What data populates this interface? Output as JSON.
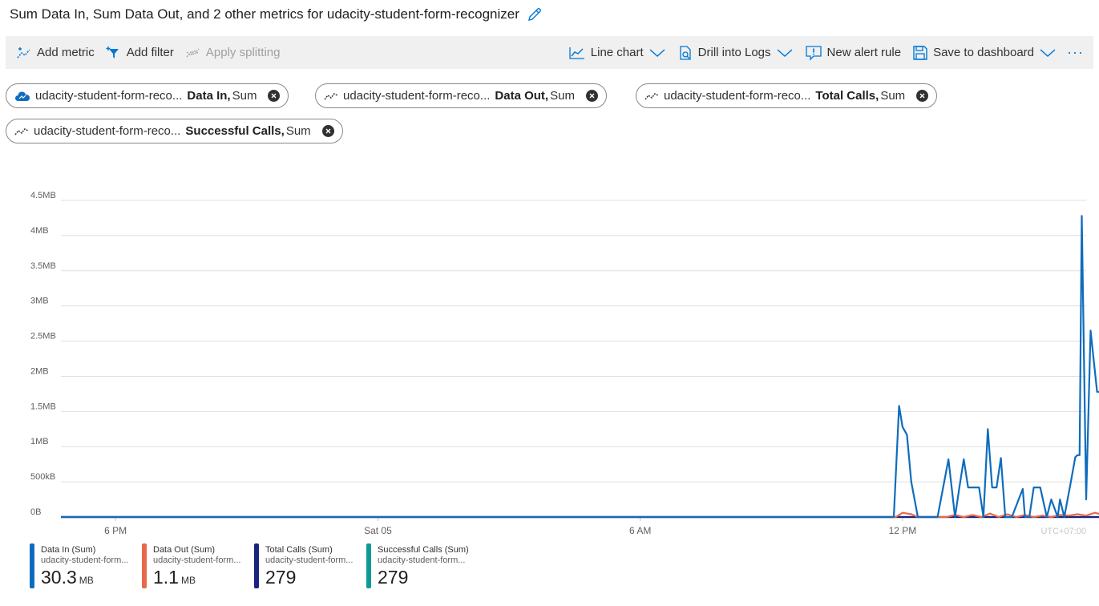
{
  "header": {
    "title": "Sum Data In, Sum Data Out, and 2 other metrics for udacity-student-form-recognizer"
  },
  "toolbar": {
    "add_metric": "Add metric",
    "add_filter": "Add filter",
    "apply_splitting": "Apply splitting",
    "line_chart": "Line chart",
    "drill_logs": "Drill into Logs",
    "new_alert": "New alert rule",
    "save_dashboard": "Save to dashboard",
    "more": "···"
  },
  "pills": [
    {
      "resource": "udacity-student-form-reco...",
      "metric": "Data In,",
      "agg": "Sum"
    },
    {
      "resource": "udacity-student-form-reco...",
      "metric": "Data Out,",
      "agg": "Sum"
    },
    {
      "resource": "udacity-student-form-reco...",
      "metric": "Total Calls,",
      "agg": "Sum"
    },
    {
      "resource": "udacity-student-form-reco...",
      "metric": "Successful Calls,",
      "agg": "Sum"
    }
  ],
  "colors": {
    "data_in": "#0f6cbd",
    "data_out": "#e8684a",
    "total_calls": "#1a237e",
    "successful_calls": "#0e9999",
    "accent": "#0078d4"
  },
  "chart_data": {
    "type": "line",
    "y_ticks": [
      "4.5MB",
      "4MB",
      "3.5MB",
      "3MB",
      "2.5MB",
      "2MB",
      "1.5MB",
      "1MB",
      "500kB",
      "0B"
    ],
    "x_ticks": [
      "6 PM",
      "Sat 05",
      "6 AM",
      "12 PM"
    ],
    "timezone_label": "UTC+07:00",
    "ylim": [
      0,
      4.5
    ],
    "y_unit": "MB",
    "x_unit": "hours",
    "xlim": [
      -1.25,
      22.2
    ],
    "x_tick_values": [
      0,
      6,
      12,
      18
    ],
    "grid": true,
    "series": [
      {
        "name": "Data In (Sum)",
        "color": "#0f6cbd",
        "x": [
          -1.25,
          17.8,
          17.92,
          18.0,
          18.1,
          18.2,
          18.35,
          18.8,
          19.05,
          19.2,
          19.3,
          19.4,
          19.5,
          19.75,
          19.85,
          19.95,
          20.05,
          20.15,
          20.25,
          20.35,
          20.5,
          20.75,
          20.8,
          20.9,
          21.0,
          21.15,
          21.3,
          21.4,
          21.55,
          21.6,
          21.7,
          21.85,
          21.95,
          22.0,
          22.05,
          22.1,
          22.2,
          22.3,
          22.45
        ],
        "y": [
          0,
          0,
          1.58,
          1.28,
          1.17,
          0.5,
          0,
          0,
          0.82,
          0,
          0.42,
          0.82,
          0.42,
          0.42,
          0,
          1.25,
          0.42,
          0.42,
          0.84,
          0,
          0,
          0.4,
          0,
          0,
          0.42,
          0.42,
          0,
          0.25,
          0,
          0.25,
          0,
          0.5,
          0.85,
          0.88,
          0.88,
          4.28,
          0.25,
          2.65,
          1.78
        ],
        "x_tail": [
          22.6,
          22.75,
          22.9
        ],
        "y_tail": [
          1.78,
          0.88,
          0
        ]
      },
      {
        "name": "Data Out (Sum)",
        "color": "#e8684a",
        "x": [
          -1.25,
          17.85,
          18.0,
          18.2,
          18.35,
          19.0,
          19.2,
          19.4,
          19.6,
          19.8,
          20.0,
          20.2,
          20.4,
          20.6,
          20.8,
          21.0,
          21.2,
          21.4,
          21.6,
          21.8,
          22.0,
          22.2,
          22.4,
          22.6,
          22.9
        ],
        "y": [
          0,
          0,
          0.06,
          0.04,
          0,
          0,
          0.03,
          0,
          0.03,
          0,
          0.05,
          0,
          0.04,
          0,
          0.03,
          0,
          0.02,
          0,
          0.03,
          0.02,
          0.04,
          0.02,
          0.06,
          0.03,
          0
        ]
      },
      {
        "name": "Total Calls (Sum)",
        "color": "#1a237e",
        "x": [
          -1.25,
          22.9
        ],
        "y": [
          0,
          0
        ]
      },
      {
        "name": "Successful Calls (Sum)",
        "color": "#0e9999",
        "x": [
          -1.25,
          22.9
        ],
        "y": [
          0,
          0
        ]
      }
    ]
  },
  "legend": [
    {
      "name": "Data In (Sum)",
      "resource": "udacity-student-form...",
      "value": "30.3",
      "unit": "MB",
      "color": "#0f6cbd"
    },
    {
      "name": "Data Out (Sum)",
      "resource": "udacity-student-form...",
      "value": "1.1",
      "unit": "MB",
      "color": "#e8684a"
    },
    {
      "name": "Total Calls (Sum)",
      "resource": "udacity-student-form...",
      "value": "279",
      "unit": "",
      "color": "#1a237e"
    },
    {
      "name": "Successful Calls (Sum)",
      "resource": "udacity-student-form...",
      "value": "279",
      "unit": "",
      "color": "#0e9999"
    }
  ]
}
